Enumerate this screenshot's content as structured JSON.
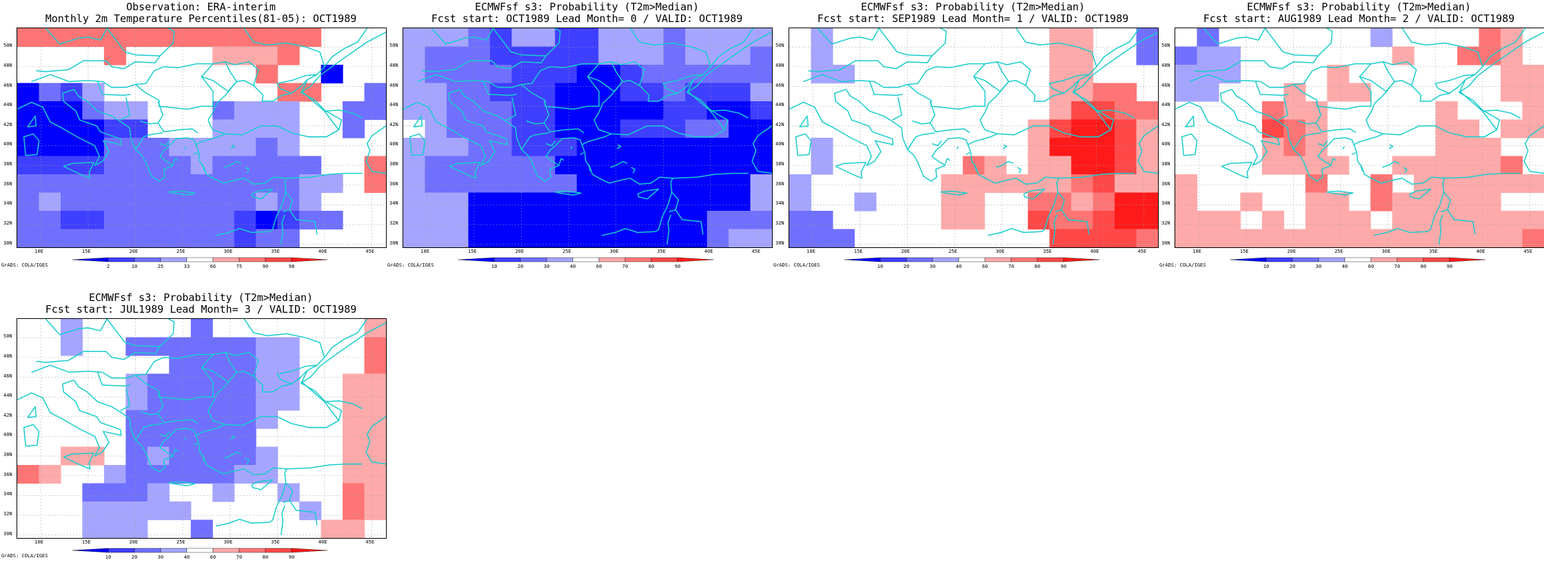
{
  "cb_palette": {
    "blue": [
      "#0000ff",
      "#3f3fff",
      "#7070ff",
      "#a5a5ff"
    ],
    "red": [
      "#ffaaaa",
      "#ff7575",
      "#ff4848",
      "#ff1a1a"
    ],
    "obs_labels": [
      "2",
      "10",
      "25",
      "33",
      "66",
      "75",
      "90",
      "98"
    ],
    "prob_labels": [
      "10",
      "20",
      "30",
      "40",
      "60",
      "70",
      "80",
      "90"
    ]
  },
  "coast_color": "#19cccc",
  "grads_label": "GrADS: COLA/IGES",
  "lat_labels": [
    "30N",
    "32N",
    "34N",
    "36N",
    "38N",
    "40N",
    "42N",
    "44N",
    "46N",
    "48N",
    "50N"
  ],
  "lon_labels": [
    "10E",
    "15E",
    "20E",
    "25E",
    "30E",
    "35E",
    "40E",
    "45E"
  ],
  "panels": [
    {
      "name": "observation",
      "title1": "Observation: ERA-interim",
      "title2": "Monthly 2m Temperature Percentiles(81-05): OCT1989",
      "colorbar": "obs",
      "grid": [
        "xxxxxxxxxxxxxx...",
        "....x....wwwx....",
        "...........x..a..",
        "acbd........xx..c",
        "aaacdd...cddd..cc",
        "aaaabb...dddd..c.",
        "aaaacccddddcd....",
        "bbbbccccdccccc..x",
        "cccccccccccccdd.x",
        "cdcccccccccdcd...",
        "ccbbccccccbabcc..",
        "ccccccccccbcc...."
      ]
    },
    {
      "name": "lead-0",
      "title1": "ECMWFsf s3: Probability (T2m>Median)",
      "title2": "Fcst start: OCT1989  Lead Month= 0 / VALID: OCT1989",
      "colorbar": "prob",
      "grid": [
        "dddcbddbbdddcdddd",
        "dcccbbbbbdddcdddc",
        "dccccbbbaabcccccc",
        "ddccbbbaaabbcbbbd",
        "ddcccbbaaaaabbaab",
        ".dcccbbaaabbbccaa",
        "dddccbbbaaaaaaaaa",
        "dccccccaaaaaaaaaa",
        "dcccccccaaaaaaaad",
        "dddaaaaaaaaaaaaad",
        "dddaaaaaaaaaaaccc",
        "dddaaaaaaaaaaacdd"
      ]
    },
    {
      "name": "lead-1",
      "title1": "ECMWFsf s3: Probability (T2m>Median)",
      "title2": "Fcst start: SEP1989  Lead Month= 1 / VALID: OCT1989",
      "colorbar": "prob",
      "grid": [
        ".d..........ww..c",
        ".d..........ww..c",
        ".dd.........ww...",
        "............wwxx.",
        "............wyyxx",
        "...........wyzzyw",
        ".d.........wzzzyw",
        ".d......xw.wwzzyw",
        "d......wwwwwwxyww",
        "d..d...ww..xxwxzz",
        "cc.....ww..yxxyzz",
        "ccc.........yyyyx"
      ]
    },
    {
      "name": "lead-2",
      "title1": "ECMWFsf s3: Probability (T2m>Median)",
      "title2": "Fcst start: AUG1989  Lead Month= 2 / VALID: OCT1989",
      "colorbar": "prob",
      "grid": [
        ".c.......d....xw.",
        "cdd.......w..xxw.",
        "ddd....w.......ww",
        "dd...w.ww......ww",
        "....xww.....w...w",
        "....yxw.....ww.ww",
        "....wxw.....www..",
        "....wwww..wwwwwx.",
        "w.....x..x.wwwwww",
        "w..w..ww.xwwwww..",
        "www.w.www.wwwwwww",
        "wwwwwwwwwwwwwwwwx"
      ]
    },
    {
      "name": "lead-3",
      "title1": "ECMWFsf s3: Probability (T2m>Median)",
      "title2": "Fcst start: JUL1989  Lead Month= 3 / VALID: OCT1989",
      "colorbar": "prob",
      "grid": [
        "..d.....c.......w",
        "..d..ccccccdd...x",
        ".......ccccdd...x",
        ".....dcccccdd..ww",
        ".....dcccccdd..ww",
        ".....ccccccd...ww",
        ".....cccccc....ww",
        "..ww.cdccccd...ww",
        "xw..dcccccdd...ww",
        "...cccd..d..d..xw",
        "...ddddd.....d.xw",
        "...ddd..c.....ww."
      ]
    }
  ]
}
